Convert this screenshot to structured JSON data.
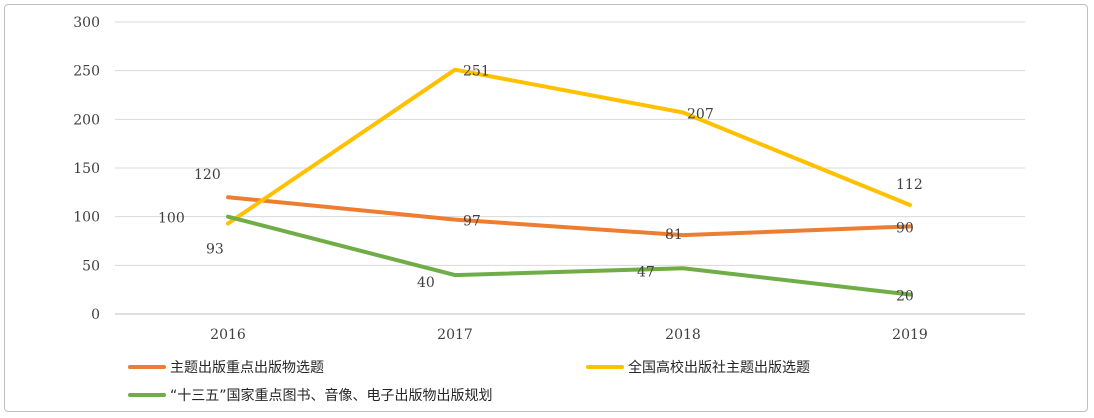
{
  "chart_data": {
    "type": "line",
    "categories": [
      "2016",
      "2017",
      "2018",
      "2019"
    ],
    "ylim": [
      0,
      300
    ],
    "yticks": [
      0,
      50,
      100,
      150,
      200,
      250,
      300
    ],
    "grid": true,
    "legend_position": "bottom",
    "series": [
      {
        "name": "主题出版重点出版物选题",
        "values": [
          120,
          97,
          81,
          90
        ],
        "color": "#ED7D31"
      },
      {
        "name": "全国高校出版社主题出版选题",
        "values": [
          93,
          251,
          207,
          112
        ],
        "color": "#FFC000"
      },
      {
        "name": "“十三五”国家重点图书、音像、电子出版物出版规划",
        "values": [
          100,
          40,
          47,
          20
        ],
        "color": "#70AD47"
      }
    ]
  }
}
